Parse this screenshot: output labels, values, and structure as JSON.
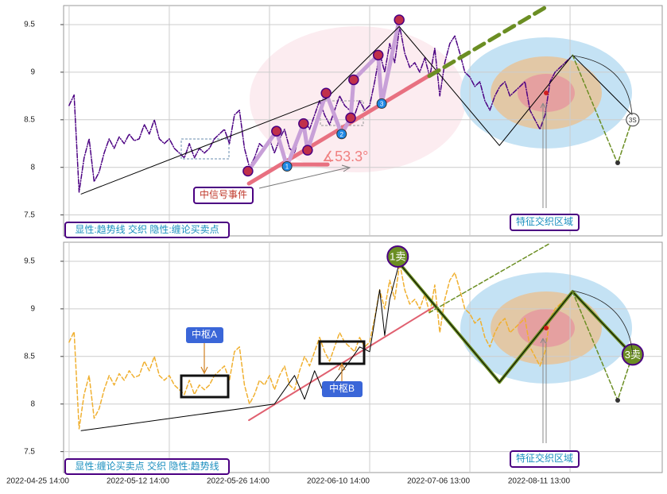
{
  "chart_data": [
    {
      "type": "line",
      "xlim": [
        -1.1,
        118.4
      ],
      "ylim": [
        7.28,
        9.7
      ],
      "yticks": [
        7.5,
        8.0,
        8.5,
        9.0,
        9.5
      ],
      "grid": true,
      "series": [
        {
          "color": "#4b0082",
          "style": "dashdot",
          "x": [
            0,
            1,
            2,
            3,
            4,
            5,
            6,
            7,
            8,
            9,
            10,
            11,
            12,
            13,
            14,
            15,
            16,
            17,
            18,
            19,
            20,
            21,
            22,
            23,
            24,
            25,
            26,
            27,
            28,
            29,
            30,
            31,
            32,
            33,
            34,
            35,
            36,
            37,
            38,
            39,
            40,
            41,
            42,
            43,
            44,
            45,
            46,
            47,
            48,
            49,
            50,
            51,
            52,
            53,
            54,
            55,
            56,
            57,
            58,
            59,
            60,
            61,
            62,
            63,
            64,
            65,
            66,
            67,
            68,
            69,
            70,
            71,
            72,
            73,
            74,
            75,
            76,
            77,
            78,
            79,
            80,
            81,
            82,
            83,
            84,
            85,
            86,
            87,
            88,
            89,
            90,
            91,
            92,
            93,
            94,
            95,
            96,
            97,
            98,
            99,
            100
          ],
          "values": [
            8.65,
            8.76,
            7.74,
            8.1,
            8.3,
            7.85,
            7.95,
            8.15,
            8.3,
            8.2,
            8.32,
            8.25,
            8.35,
            8.28,
            8.3,
            8.45,
            8.35,
            8.5,
            8.3,
            8.25,
            8.3,
            8.2,
            8.15,
            8.1,
            8.25,
            8.1,
            8.2,
            8.15,
            8.2,
            8.3,
            8.35,
            8.4,
            8.25,
            8.55,
            8.6,
            8.2,
            8.0,
            8.1,
            8.25,
            8.2,
            8.3,
            8.15,
            8.3,
            8.4,
            8.2,
            8.15,
            8.35,
            8.5,
            8.4,
            8.55,
            8.7,
            8.55,
            8.45,
            8.6,
            8.75,
            8.65,
            8.6,
            8.55,
            8.7,
            8.6,
            8.65,
            8.9,
            9.2,
            9.0,
            9.3,
            9.1,
            9.48,
            9.2,
            9.05,
            9.1,
            9.0,
            9.15,
            8.95,
            9.25,
            8.75,
            9.1,
            9.3,
            9.38,
            9.2,
            9.0,
            8.95,
            8.85,
            8.9,
            8.7,
            8.6,
            8.75,
            8.85,
            8.9,
            8.75,
            8.8,
            8.85,
            8.9,
            8.6,
            8.5,
            8.4,
            8.55,
            8.9,
            9.0,
            9.05,
            9.1,
            9.15
          ]
        },
        {
          "color": "#e87080",
          "style": "thick",
          "x": [
            35.9,
            73.0
          ],
          "values": [
            7.83,
            9.0
          ]
        },
        {
          "color": "#e87080",
          "style": "thick",
          "x": [
            43.5,
            51.6
          ],
          "values": [
            8.03,
            8.03
          ]
        },
        {
          "color": "#c8a0d8",
          "style": "thick",
          "x": [
            35.7,
            41.4,
            43.5,
            46.8,
            47.6,
            51.3,
            54.4,
            56.2,
            56.8,
            61.7,
            62.4,
            65.9
          ],
          "values": [
            7.96,
            8.38,
            8.01,
            8.46,
            8.18,
            8.78,
            8.35,
            8.52,
            8.92,
            9.18,
            8.67,
            9.55
          ]
        },
        {
          "color": "#000000",
          "style": "solid",
          "x": [
            2.4,
            51.3,
            65.9,
            85.9,
            100.5,
            112.4
          ],
          "values": [
            7.72,
            8.72,
            9.48,
            8.23,
            9.18,
            8.55
          ]
        },
        {
          "color": "#6b8e23",
          "style": "thick-dashed",
          "x": [
            71.9,
            95.7
          ],
          "values": [
            8.96,
            9.7
          ]
        },
        {
          "color": "#6b8e23",
          "style": "dashed",
          "x": [
            100.5,
            109.5,
            112.4
          ],
          "values": [
            9.18,
            8.04,
            8.5
          ]
        }
      ],
      "markers": {
        "color": "#c0304a",
        "x": [
          35.7,
          41.4,
          46.8,
          47.6,
          51.3,
          56.2,
          56.8,
          61.7,
          65.9
        ],
        "values": [
          7.96,
          8.38,
          8.46,
          8.18,
          8.78,
          8.52,
          8.92,
          9.18,
          9.55
        ]
      },
      "points": {
        "color": "#1e88e5",
        "x": [
          43.5,
          54.4,
          62.4
        ],
        "values": [
          8.01,
          8.35,
          8.67
        ],
        "labels": [
          "1",
          "2",
          "3"
        ]
      },
      "sells": {
        "color": "#ffffff",
        "x": [
          112.5
        ],
        "values": [
          8.5
        ],
        "labels": [
          "3S"
        ]
      },
      "annotations": {
        "event": "中信号事件",
        "angle": "∡53.3°",
        "zone": "特征交织区域",
        "caption": "显性:趋势线 交织 隐性:缠论买卖点"
      }
    },
    {
      "type": "line",
      "xlim": [
        -1.1,
        118.4
      ],
      "ylim": [
        7.28,
        9.7
      ],
      "yticks": [
        7.5,
        8.0,
        8.5,
        9.0,
        9.5
      ],
      "grid": true,
      "xticks": [
        {
          "value": 0,
          "label": "2022-04-25 14:00"
        },
        {
          "value": 20,
          "label": "2022-05-12 14:00"
        },
        {
          "value": 40,
          "label": "2022-05-26 14:00"
        },
        {
          "value": 60,
          "label": "2022-06-10 14:00"
        },
        {
          "value": 80,
          "label": "2022-07-06 13:00"
        },
        {
          "value": 100,
          "label": "2022-08-11 13:00"
        }
      ],
      "series": [
        {
          "color": "#f0b030",
          "style": "dashed",
          "x": [
            0,
            1,
            2,
            3,
            4,
            5,
            6,
            7,
            8,
            9,
            10,
            11,
            12,
            13,
            14,
            15,
            16,
            17,
            18,
            19,
            20,
            21,
            22,
            23,
            24,
            25,
            26,
            27,
            28,
            29,
            30,
            31,
            32,
            33,
            34,
            35,
            36,
            37,
            38,
            39,
            40,
            41,
            42,
            43,
            44,
            45,
            46,
            47,
            48,
            49,
            50,
            51,
            52,
            53,
            54,
            55,
            56,
            57,
            58,
            59,
            60,
            61,
            62,
            63,
            64,
            65,
            66,
            67,
            68,
            69,
            70,
            71,
            72,
            73,
            74,
            75,
            76,
            77,
            78,
            79,
            80,
            81,
            82,
            83,
            84,
            85,
            86,
            87,
            88,
            89,
            90,
            91,
            92,
            93,
            94,
            95,
            96,
            97,
            98,
            99,
            100
          ],
          "values": [
            8.65,
            8.76,
            7.74,
            8.1,
            8.3,
            7.85,
            7.95,
            8.15,
            8.3,
            8.2,
            8.32,
            8.25,
            8.35,
            8.28,
            8.3,
            8.45,
            8.35,
            8.5,
            8.3,
            8.25,
            8.3,
            8.2,
            8.15,
            8.1,
            8.25,
            8.1,
            8.2,
            8.15,
            8.2,
            8.3,
            8.35,
            8.4,
            8.25,
            8.55,
            8.6,
            8.2,
            8.0,
            8.1,
            8.25,
            8.2,
            8.3,
            8.15,
            8.3,
            8.4,
            8.2,
            8.15,
            8.35,
            8.5,
            8.4,
            8.55,
            8.7,
            8.55,
            8.45,
            8.6,
            8.75,
            8.65,
            8.6,
            8.55,
            8.7,
            8.6,
            8.65,
            8.9,
            9.2,
            9.0,
            9.3,
            9.1,
            9.48,
            9.2,
            9.05,
            9.1,
            9.0,
            9.15,
            8.95,
            9.25,
            8.75,
            9.1,
            9.3,
            9.38,
            9.2,
            9.0,
            8.95,
            8.85,
            8.9,
            8.7,
            8.6,
            8.75,
            8.85,
            8.9,
            8.75,
            8.8,
            8.85,
            8.9,
            8.6,
            8.5,
            8.4,
            8.55,
            8.9,
            9.0,
            9.05,
            9.1,
            9.15
          ]
        },
        {
          "color": "#e06070",
          "style": "medium",
          "x": [
            35.9,
            73.4
          ],
          "values": [
            7.83,
            9.04
          ]
        },
        {
          "color": "#6b8e23",
          "style": "olive",
          "x": [
            65.9,
            85.9,
            100.5,
            112.4
          ],
          "values": [
            9.48,
            8.23,
            9.18,
            8.52
          ]
        },
        {
          "color": "#000000",
          "style": "solid",
          "x": [
            2.4,
            41.0,
            45.0,
            47.0,
            49.0,
            51.0,
            56.0,
            58.0,
            60.0,
            62.0,
            63.0,
            64.0,
            65.9,
            85.9,
            100.5,
            112.4
          ],
          "values": [
            7.72,
            8.0,
            8.3,
            8.05,
            8.35,
            8.1,
            8.45,
            8.6,
            8.55,
            9.2,
            8.72,
            9.1,
            9.48,
            8.23,
            9.18,
            8.52
          ]
        },
        {
          "color": "#6b8e23",
          "style": "dashed",
          "x": [
            71.9,
            95.7
          ],
          "values": [
            8.96,
            9.68
          ]
        },
        {
          "color": "#6b8e23",
          "style": "dashed",
          "x": [
            100.5,
            109.5,
            112.5
          ],
          "values": [
            9.18,
            8.04,
            8.52
          ]
        }
      ],
      "sells": {
        "color": "#6b8e23",
        "x": [
          65.6,
          112.5
        ],
        "values": [
          9.55,
          8.52
        ],
        "labels": [
          "1卖",
          "3卖"
        ]
      },
      "annotations": {
        "hubA": "中枢A",
        "hubB": "中枢B",
        "zone": "特征交织区域",
        "caption": "显性:缠论买卖点 交织 隐性:趋势线"
      }
    }
  ]
}
